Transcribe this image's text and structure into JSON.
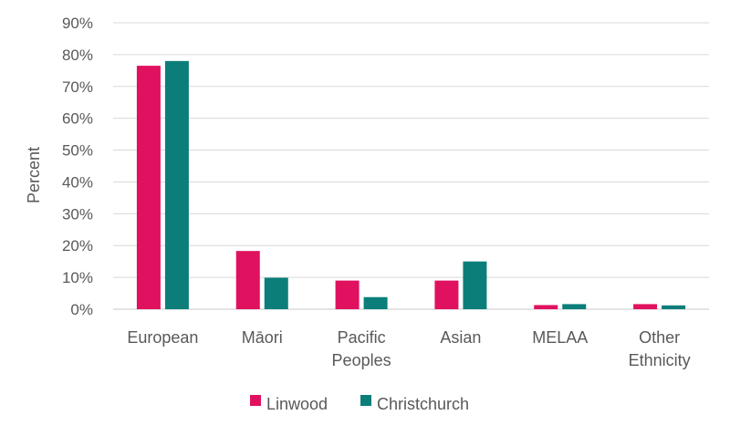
{
  "chart_data": {
    "type": "bar",
    "title": "",
    "xlabel": "",
    "ylabel": "Percent",
    "ylim": [
      0,
      90
    ],
    "y_ticks": [
      "0%",
      "10%",
      "20%",
      "30%",
      "40%",
      "50%",
      "60%",
      "70%",
      "80%",
      "90%"
    ],
    "y_tick_values": [
      0,
      10,
      20,
      30,
      40,
      50,
      60,
      70,
      80,
      90
    ],
    "grid": true,
    "legend_position": "bottom",
    "categories": [
      [
        "European"
      ],
      [
        "Māori"
      ],
      [
        "Pacific",
        "Peoples"
      ],
      [
        "Asian"
      ],
      [
        "MELAA"
      ],
      [
        "Other",
        "Ethnicity"
      ]
    ],
    "series": [
      {
        "name": "Linwood",
        "color": "#e0115f",
        "values": [
          76.5,
          18.3,
          9.0,
          9.0,
          1.3,
          1.6
        ]
      },
      {
        "name": "Christchurch",
        "color": "#0b7e7a",
        "values": [
          78.0,
          9.9,
          3.8,
          15.0,
          1.6,
          1.2
        ]
      }
    ]
  }
}
